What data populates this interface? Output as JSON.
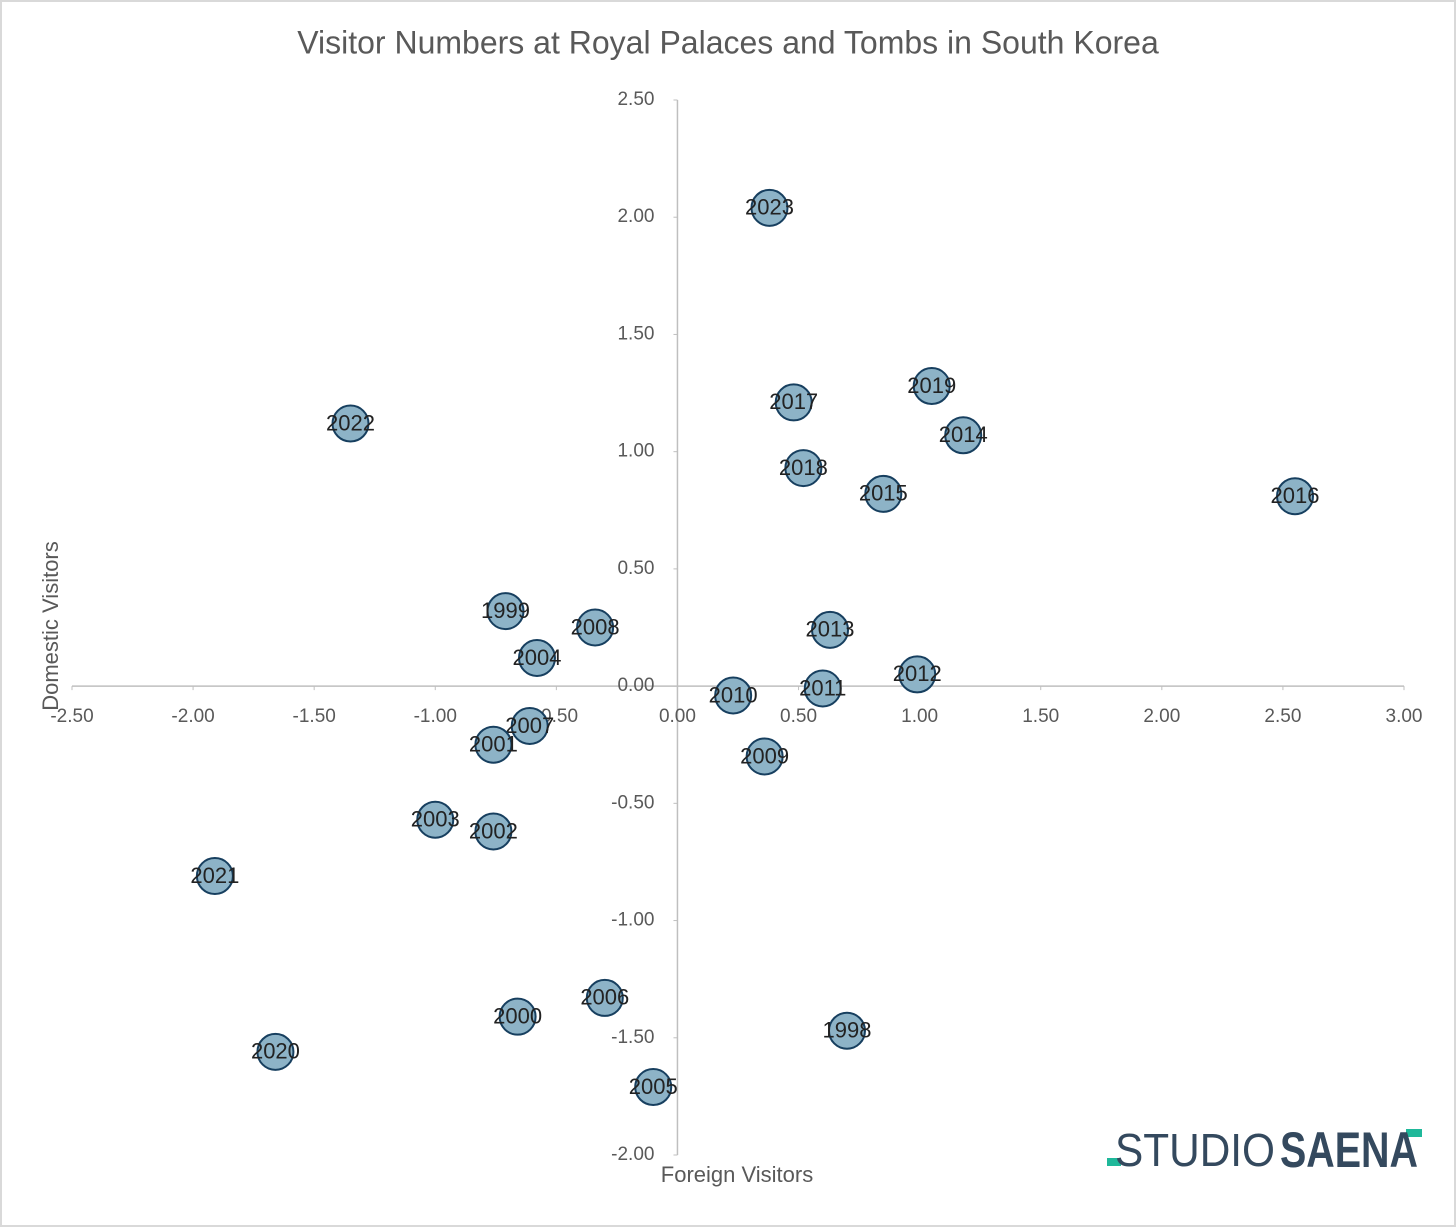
{
  "chart_data": {
    "type": "scatter",
    "title": "Visitor Numbers at Royal Palaces and Tombs in South Korea",
    "x_label": "Foreign Visitors",
    "y_label": "Domestic Visitors",
    "labels": [
      "2023",
      "2019",
      "2017",
      "2022",
      "2014",
      "2018",
      "2015",
      "2016",
      "1999",
      "2008",
      "2013",
      "2004",
      "2012",
      "2011",
      "2010",
      "2007",
      "2001",
      "2009",
      "2003",
      "2002",
      "2021",
      "2006",
      "2000",
      "1998",
      "2020",
      "2005"
    ],
    "x": [
      0.38,
      1.05,
      0.48,
      -1.35,
      1.18,
      0.52,
      0.85,
      2.55,
      -0.71,
      -0.34,
      0.63,
      -0.58,
      0.99,
      0.6,
      0.23,
      -0.61,
      -0.76,
      0.36,
      -1.0,
      -0.76,
      -1.91,
      -0.3,
      -0.66,
      0.7,
      -1.66,
      -0.1
    ],
    "series": [
      {
        "name": "Visitors",
        "color": "#8db3c7",
        "edge_color": "#173f5f",
        "values": [
          2.04,
          1.28,
          1.21,
          1.12,
          1.07,
          0.93,
          0.82,
          0.81,
          0.32,
          0.25,
          0.24,
          0.12,
          0.05,
          -0.01,
          -0.04,
          -0.17,
          -0.25,
          -0.3,
          -0.57,
          -0.62,
          -0.81,
          -1.33,
          -1.41,
          -1.47,
          -1.56,
          -1.71
        ]
      }
    ],
    "xlim": [
      -2.5,
      3.0
    ],
    "ylim": [
      -2.0,
      2.5
    ],
    "xticks": [
      {
        "value": -2.5,
        "label": "-2.50"
      },
      {
        "value": -2,
        "label": "-2.00"
      },
      {
        "value": -1.5,
        "label": "-1.50"
      },
      {
        "value": -1,
        "label": "-1.00"
      },
      {
        "value": -0.5,
        "label": "-0.50"
      },
      {
        "value": 0,
        "label": "0.00"
      },
      {
        "value": 0.5,
        "label": "0.50"
      },
      {
        "value": 1,
        "label": "1.00"
      },
      {
        "value": 1.5,
        "label": "1.50"
      },
      {
        "value": 2,
        "label": "2.00"
      },
      {
        "value": 2.5,
        "label": "2.50"
      },
      {
        "value": 3,
        "label": "3.00"
      }
    ],
    "yticks": [
      {
        "value": -2,
        "label": "-2.00"
      },
      {
        "value": -1.5,
        "label": "-1.50"
      },
      {
        "value": -1,
        "label": "-1.00"
      },
      {
        "value": -0.5,
        "label": "-0.50"
      },
      {
        "value": 0,
        "label": "0.00"
      },
      {
        "value": 0.5,
        "label": "0.50"
      },
      {
        "value": 1,
        "label": "1.00"
      },
      {
        "value": 1.5,
        "label": "1.50"
      },
      {
        "value": 2,
        "label": "2.00"
      },
      {
        "value": 2.5,
        "label": "2.50"
      }
    ],
    "grid": false,
    "logo": [
      "STUDIO",
      "SAENA"
    ]
  }
}
